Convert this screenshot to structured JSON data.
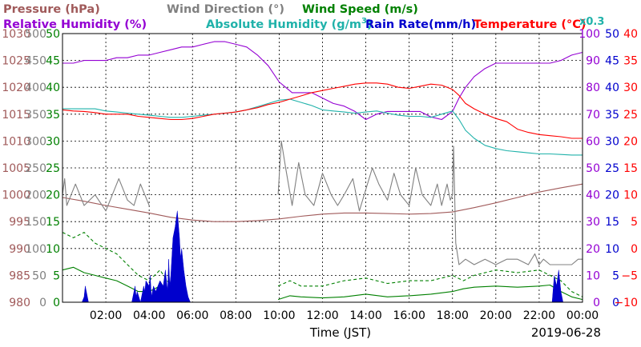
{
  "chart_data": {
    "type": "line",
    "date": "2019-06-28",
    "xlabel": "Time (JST)",
    "x_ticks": [
      "02:00",
      "04:00",
      "06:00",
      "08:00",
      "10:00",
      "12:00",
      "14:00",
      "16:00",
      "18:00",
      "20:00",
      "22:00",
      "00:00"
    ],
    "xlim_hours": [
      0,
      24
    ],
    "grid": true,
    "legend": [
      {
        "label": "Pressure (hPa)",
        "color": "#a05a5a"
      },
      {
        "label": "Wind Direction (°)",
        "color": "#808080"
      },
      {
        "label": "Wind Speed (m/s)",
        "color": "#008000"
      },
      {
        "label": "Relative Humidity (%)",
        "color": "#9400d3"
      },
      {
        "label": "Absolute Humidity (g/m",
        "sup": "3",
        "tail": ")",
        "color": "#20b2aa"
      },
      {
        "label": "Rain Rate(mm/h)",
        "color": "#0000cd"
      },
      {
        "label": "Temperature (°C)",
        "color": "#ff0000"
      },
      {
        "label": "x0.3",
        "color": "#20b2aa"
      }
    ],
    "axes": {
      "pressure": {
        "color": "#a05a5a",
        "range": [
          980,
          1030
        ],
        "ticks": [
          "1030",
          "1025",
          "1020",
          "1015",
          "1010",
          "1005",
          "1000",
          "995",
          "990",
          "985",
          "980"
        ]
      },
      "wind_direction": {
        "color": "#808080",
        "range": [
          0,
          500
        ],
        "ticks": [
          "500",
          "450",
          "400",
          "350",
          "300",
          "250",
          "200",
          "150",
          "100",
          "50",
          "0"
        ]
      },
      "wind_speed": {
        "color": "#008000",
        "range": [
          0,
          50
        ],
        "ticks": [
          "50",
          "45",
          "40",
          "35",
          "30",
          "25",
          "20",
          "15",
          "10",
          "5",
          "0"
        ]
      },
      "relative_humidity": {
        "color": "#9400d3",
        "range": [
          0,
          100
        ],
        "ticks": [
          "100",
          "90",
          "80",
          "70",
          "60",
          "50",
          "40",
          "30",
          "20",
          "10",
          "0"
        ]
      },
      "rain_rate": {
        "color": "#0000cd",
        "range": [
          0,
          50
        ],
        "ticks": [
          "50",
          "45",
          "40",
          "35",
          "30",
          "25",
          "20",
          "15",
          "10",
          "5",
          "0"
        ]
      },
      "temperature": {
        "color": "#ff0000",
        "range": [
          -10,
          40
        ],
        "ticks": [
          "40",
          "35",
          "30",
          "25",
          "20",
          "15",
          "10",
          "5",
          "0",
          "−5",
          "−10"
        ]
      }
    },
    "series": [
      {
        "name": "Pressure",
        "axis": "pressure",
        "color": "#a05a5a",
        "x": [
          0,
          1,
          2,
          3,
          4,
          5,
          6,
          7,
          8,
          9,
          10,
          11,
          12,
          13,
          14,
          15,
          16,
          17,
          18,
          19,
          20,
          21,
          22,
          23,
          24
        ],
        "y": [
          999.5,
          998.8,
          998,
          997.3,
          996.6,
          995.8,
          995.3,
          995,
          995,
          995.2,
          995.5,
          996,
          996.4,
          996.6,
          996.6,
          996.5,
          996.4,
          996.5,
          996.8,
          997.6,
          998.5,
          999.5,
          1000.5,
          1001.3,
          1002
        ]
      },
      {
        "name": "Wind Direction",
        "axis": "wind_direction",
        "color": "#808080",
        "x": [
          0,
          0.1,
          0.2,
          0.4,
          0.6,
          1,
          1.5,
          2,
          2.3,
          2.6,
          3,
          3.3,
          3.6,
          4,
          4.5,
          5,
          6,
          7,
          8,
          9,
          9.95,
          10.1,
          10.3,
          10.6,
          10.9,
          11.2,
          11.6,
          12,
          12.4,
          12.7,
          13,
          13.4,
          13.7,
          14,
          14.3,
          14.6,
          15,
          15.3,
          15.6,
          16,
          16.3,
          16.6,
          17,
          17.3,
          17.5,
          17.75,
          17.9,
          18,
          18.05,
          18.15,
          18.3,
          18.6,
          19,
          19.5,
          20,
          20.5,
          21,
          21.5,
          21.8,
          22,
          22.2,
          22.5,
          23,
          23.5,
          23.8,
          24
        ],
        "y": [
          200,
          230,
          180,
          200,
          220,
          180,
          200,
          170,
          200,
          230,
          190,
          180,
          220,
          180,
          null,
          null,
          null,
          null,
          null,
          null,
          200,
          300,
          250,
          180,
          260,
          200,
          180,
          240,
          200,
          180,
          200,
          230,
          170,
          210,
          250,
          220,
          190,
          240,
          200,
          180,
          250,
          200,
          180,
          220,
          180,
          220,
          190,
          200,
          290,
          110,
          70,
          80,
          70,
          80,
          70,
          80,
          80,
          70,
          90,
          70,
          80,
          70,
          70,
          70,
          80,
          80
        ]
      },
      {
        "name": "Wind Speed",
        "axis": "wind_speed",
        "color": "#008000",
        "x": [
          0,
          0.5,
          1,
          1.5,
          2,
          2.5,
          3,
          3.5,
          4,
          4.5,
          5,
          5.5,
          6,
          7,
          8,
          9,
          9.95,
          10.5,
          11,
          12,
          13,
          14,
          15,
          16,
          17,
          18,
          18.5,
          19,
          20,
          21,
          22,
          22.5,
          23,
          23.5,
          24
        ],
        "y": [
          6,
          6.5,
          5.5,
          5,
          4.5,
          4,
          3,
          2,
          2,
          3,
          1,
          0.5,
          null,
          null,
          null,
          null,
          0.5,
          1.2,
          1,
          0.8,
          1,
          1.5,
          1,
          1.2,
          1.5,
          2,
          2.5,
          2.8,
          3,
          2.8,
          3,
          3.2,
          2,
          1,
          0.5
        ]
      },
      {
        "name": "Wind Speed (max)",
        "axis": "wind_speed",
        "color": "#008000",
        "dashed": true,
        "x": [
          0,
          0.5,
          1,
          1.5,
          2,
          2.5,
          3,
          3.5,
          4,
          4.5,
          5,
          5.5,
          6,
          7,
          8,
          9,
          9.95,
          10.5,
          11,
          12,
          13,
          14,
          15,
          16,
          17,
          18,
          18.5,
          19,
          20,
          21,
          22,
          22.5,
          23,
          23.5,
          24
        ],
        "y": [
          13,
          12,
          13,
          11,
          10,
          9,
          7,
          5,
          4,
          6,
          3,
          2,
          null,
          null,
          null,
          null,
          3,
          4,
          3,
          3,
          4,
          4.5,
          3.5,
          4,
          4,
          5,
          4,
          5,
          6,
          5.5,
          6,
          5,
          4,
          2,
          1
        ]
      },
      {
        "name": "Relative Humidity",
        "axis": "relative_humidity",
        "color": "#9400d3",
        "x": [
          0,
          0.5,
          1,
          1.5,
          2,
          2.5,
          3,
          3.5,
          4,
          4.5,
          5,
          5.5,
          6,
          6.5,
          7,
          7.5,
          8,
          8.5,
          9,
          9.5,
          10,
          10.3,
          10.6,
          11,
          11.5,
          12,
          12.5,
          13,
          13.5,
          14,
          14.5,
          15,
          15.5,
          16,
          16.5,
          17,
          17.5,
          18,
          18.3,
          18.6,
          19,
          19.5,
          20,
          20.5,
          21,
          21.5,
          22,
          22.5,
          23,
          23.5,
          24
        ],
        "y": [
          89,
          89,
          90,
          90,
          90,
          91,
          91,
          92,
          92,
          93,
          94,
          95,
          95,
          96,
          97,
          97,
          96,
          95,
          92,
          88,
          82,
          80,
          78,
          78,
          78,
          76,
          74,
          73,
          71,
          68,
          70,
          71,
          71,
          71,
          71,
          69,
          68,
          71,
          76,
          80,
          84,
          87,
          89,
          89,
          89,
          89,
          89,
          89,
          90,
          92,
          93
        ]
      },
      {
        "name": "Absolute Humidity x0.3",
        "axis": "temperature",
        "color": "#20b2aa",
        "x": [
          0,
          0.5,
          1,
          1.5,
          2,
          2.5,
          3,
          3.5,
          4,
          4.5,
          5,
          5.5,
          6,
          6.5,
          7,
          7.5,
          8,
          8.5,
          9,
          9.5,
          10,
          10.5,
          11,
          11.5,
          12,
          12.5,
          13,
          13.5,
          14,
          14.5,
          15,
          15.5,
          16,
          16.5,
          17,
          17.5,
          18,
          18.3,
          18.6,
          19,
          19.5,
          20,
          20.5,
          21,
          21.5,
          22,
          22.5,
          23,
          23.5,
          24
        ],
        "y": [
          26,
          26,
          26,
          26,
          25.6,
          25.4,
          25.2,
          25,
          24.8,
          24.6,
          24.4,
          24.4,
          24.6,
          24.8,
          25,
          25.2,
          25.4,
          25.8,
          26.4,
          27,
          27.6,
          27.8,
          27.2,
          26.6,
          25.8,
          25.6,
          25.4,
          25.2,
          25.4,
          25.6,
          25.2,
          24.8,
          24.6,
          24.6,
          24.4,
          25,
          25.6,
          24,
          22,
          20.5,
          19.2,
          18.6,
          18.2,
          18,
          17.8,
          17.6,
          17.6,
          17.5,
          17.4,
          17.4
        ]
      },
      {
        "name": "Temperature",
        "axis": "temperature",
        "color": "#ff0000",
        "x": [
          0,
          0.5,
          1,
          1.5,
          2,
          2.5,
          3,
          3.5,
          4,
          4.5,
          5,
          5.5,
          6,
          6.5,
          7,
          7.5,
          8,
          8.5,
          9,
          9.5,
          10,
          10.5,
          11,
          11.5,
          12,
          12.5,
          13,
          13.5,
          14,
          14.5,
          15,
          15.5,
          16,
          16.5,
          17,
          17.5,
          18,
          18.3,
          18.6,
          19,
          19.5,
          20,
          20.5,
          21,
          21.5,
          22,
          22.5,
          23,
          23.5,
          24
        ],
        "y": [
          25.8,
          25.6,
          25.5,
          25.3,
          25,
          25,
          25,
          24.6,
          24.4,
          24.2,
          24,
          24,
          24.2,
          24.6,
          25,
          25.2,
          25.4,
          25.8,
          26.2,
          26.8,
          27.2,
          27.8,
          28.4,
          29,
          29.4,
          29.8,
          30.2,
          30.6,
          30.8,
          30.8,
          30.6,
          30,
          29.8,
          30.2,
          30.6,
          30.4,
          29.6,
          28.5,
          27,
          26,
          25,
          24.2,
          23.6,
          22.2,
          21.6,
          21.2,
          21,
          20.8,
          20.5,
          20.5
        ]
      },
      {
        "name": "Rain Rate",
        "axis": "rain_rate",
        "color": "#0000cd",
        "fill": true,
        "x": [
          0,
          0.9,
          1.0,
          1.05,
          1.15,
          1.2,
          3.2,
          3.35,
          3.4,
          3.45,
          3.6,
          3.75,
          3.8,
          3.85,
          4.0,
          4.05,
          4.1,
          4.2,
          4.3,
          4.5,
          4.65,
          4.75,
          4.85,
          4.9,
          4.95,
          5.0,
          5.1,
          5.2,
          5.3,
          5.4,
          5.45,
          5.5,
          5.6,
          5.7,
          5.8,
          5.9,
          22.6,
          22.7,
          22.8,
          22.9,
          23.0,
          23.1,
          24
        ],
        "y": [
          0,
          0,
          1,
          3,
          1,
          0,
          0,
          3,
          1,
          2,
          0,
          3,
          2,
          4,
          3,
          5,
          1,
          3,
          2,
          4,
          3,
          6,
          2,
          8,
          3,
          5,
          12,
          14,
          17,
          12,
          8,
          10,
          6,
          3,
          1,
          0,
          0,
          5,
          3,
          6,
          2,
          0,
          0
        ]
      }
    ]
  }
}
